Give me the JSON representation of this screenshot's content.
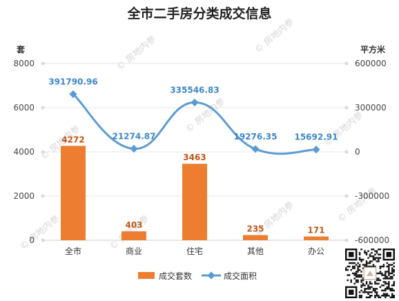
{
  "chart_data": {
    "type": "bar",
    "title": "全市二手房分类成交信息",
    "categories": [
      "全市",
      "商业",
      "住宅",
      "其他",
      "办公"
    ],
    "y_left": {
      "label": "套",
      "ticks": [
        0,
        2000,
        4000,
        6000,
        8000
      ],
      "range": [
        0,
        8000
      ]
    },
    "y_right": {
      "label": "平方米",
      "ticks": [
        -600000,
        -300000,
        0,
        300000,
        600000
      ],
      "range": [
        -600000,
        600000
      ]
    },
    "series": [
      {
        "name": "成交套数",
        "type": "bar",
        "axis": "left",
        "color": "#ed7d31",
        "values": [
          4272,
          403,
          3463,
          235,
          171
        ],
        "labels": [
          "4272",
          "403",
          "3463",
          "235",
          "171"
        ]
      },
      {
        "name": "成交面积",
        "type": "line",
        "axis": "right",
        "color": "#5b9bd5",
        "values": [
          391790.96,
          21274.87,
          335546.83,
          19276.35,
          15692.91
        ],
        "labels": [
          "391790.96",
          "21274.87",
          "335546.83",
          "19276.35",
          "15692.91"
        ]
      }
    ],
    "legend": "bottom",
    "grid": true
  },
  "watermark": {
    "text": "房地内参",
    "icon": "copyright-icon"
  },
  "qr_code": {
    "icon": "qr-code-icon"
  }
}
